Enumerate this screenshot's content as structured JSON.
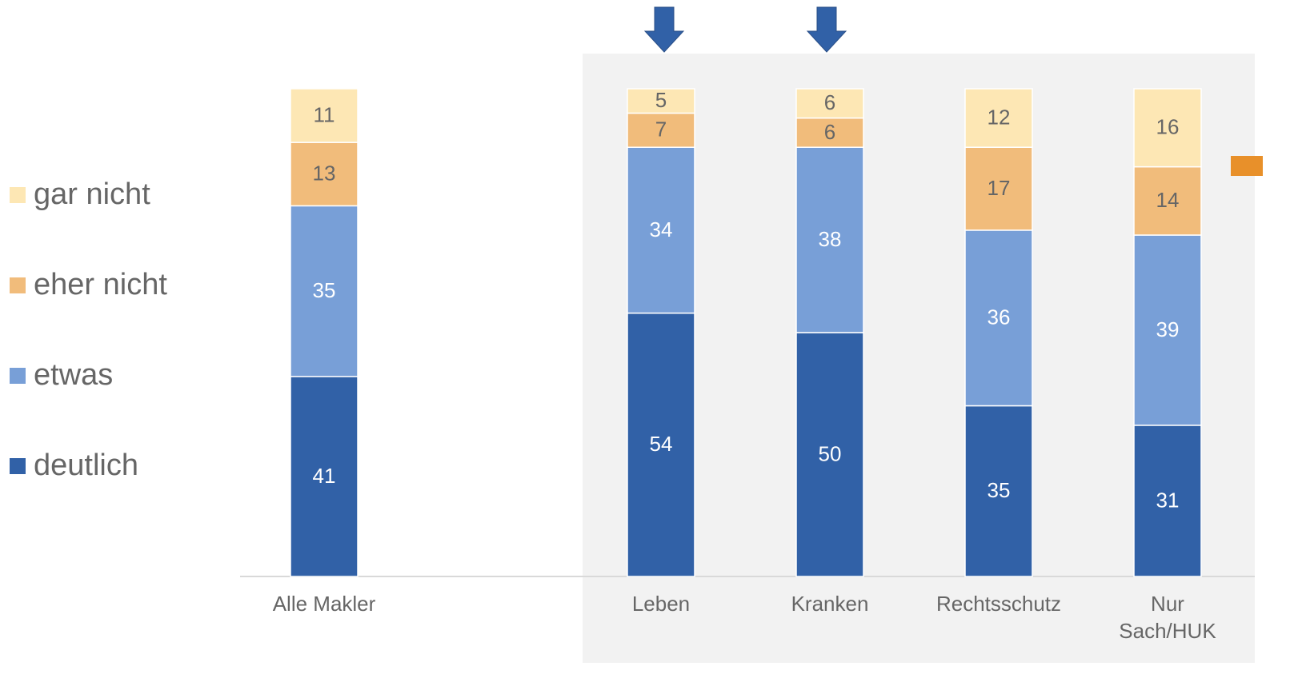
{
  "chart_data": {
    "type": "bar",
    "stacked": true,
    "categories": [
      "Alle Makler",
      "Leben",
      "Kranken",
      "Rechtsschutz",
      "Nur\nSach/HUK"
    ],
    "series": [
      {
        "name": "deutlich",
        "color": "#3161a7",
        "label_color": "#ffffff",
        "values": [
          41,
          54,
          50,
          35,
          31
        ]
      },
      {
        "name": "etwas",
        "color": "#789fd7",
        "label_color": "#ffffff",
        "values": [
          35,
          34,
          38,
          36,
          39
        ]
      },
      {
        "name": "eher nicht",
        "color": "#f1bc7b",
        "label_color": "#666666",
        "values": [
          13,
          7,
          6,
          17,
          14
        ]
      },
      {
        "name": "gar nicht",
        "color": "#fde7b4",
        "label_color": "#666666",
        "values": [
          11,
          5,
          6,
          12,
          16
        ]
      }
    ],
    "ylim": [
      0,
      100
    ]
  }
}
